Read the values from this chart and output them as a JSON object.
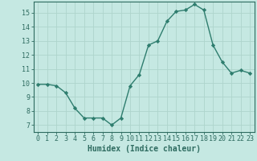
{
  "x": [
    0,
    1,
    2,
    3,
    4,
    5,
    6,
    7,
    8,
    9,
    10,
    11,
    12,
    13,
    14,
    15,
    16,
    17,
    18,
    19,
    20,
    21,
    22,
    23
  ],
  "y": [
    9.9,
    9.9,
    9.8,
    9.3,
    8.2,
    7.5,
    7.5,
    7.5,
    7.0,
    7.5,
    9.8,
    10.6,
    12.7,
    13.0,
    14.4,
    15.1,
    15.2,
    15.6,
    15.2,
    12.7,
    11.5,
    10.7,
    10.9,
    10.7
  ],
  "line_color": "#2e7d6e",
  "marker": "D",
  "marker_size": 2.2,
  "bg_color": "#c5e8e2",
  "grid_color": "#aed4cc",
  "xlabel": "Humidex (Indice chaleur)",
  "ylabel": "",
  "xlim": [
    -0.5,
    23.5
  ],
  "ylim": [
    6.5,
    15.8
  ],
  "xtick_labels": [
    "0",
    "1",
    "2",
    "3",
    "4",
    "5",
    "6",
    "7",
    "8",
    "9",
    "10",
    "11",
    "12",
    "13",
    "14",
    "15",
    "16",
    "17",
    "18",
    "19",
    "20",
    "21",
    "22",
    "23"
  ],
  "ytick_values": [
    7,
    8,
    9,
    10,
    11,
    12,
    13,
    14,
    15
  ],
  "tick_color": "#2e6b60",
  "axis_color": "#2e6b60",
  "xlabel_fontsize": 7,
  "tick_fontsize": 6,
  "label_color": "#2e6b60"
}
